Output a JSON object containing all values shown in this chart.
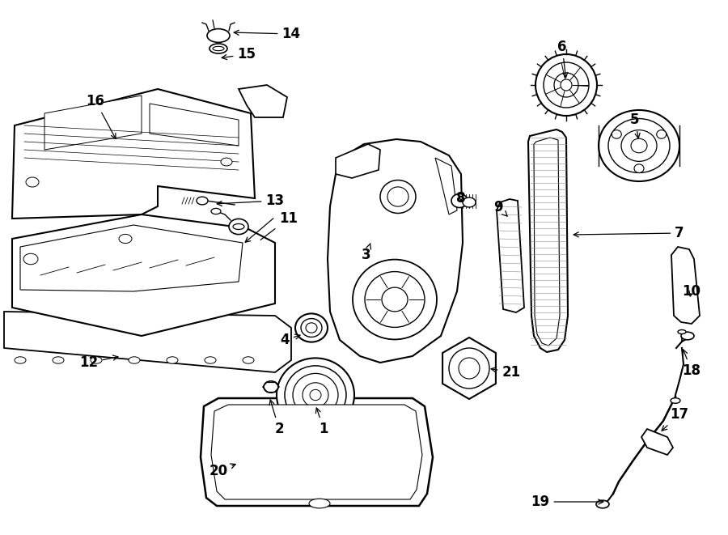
{
  "bg_color": "#ffffff",
  "line_color": "#000000",
  "lw_main": 1.3,
  "lw_detail": 0.7,
  "label_fontsize": 12,
  "figsize": [
    9.0,
    6.61
  ],
  "dpi": 100
}
